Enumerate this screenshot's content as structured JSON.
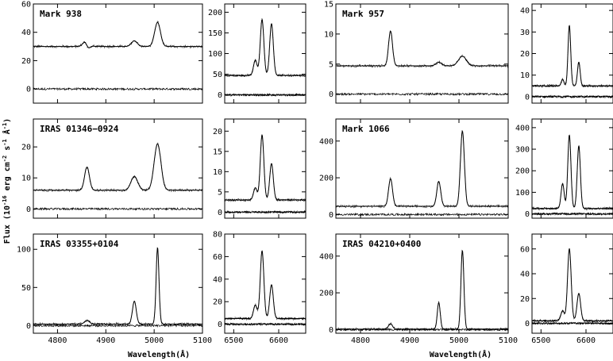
{
  "chart_data": {
    "type": "line",
    "ylabel": "Flux (10",
    "ylabel_exp1": "-16",
    "ylabel_mid": " erg cm",
    "ylabel_exp2": "-2",
    "ylabel_mid2": " s",
    "ylabel_exp3": "-1",
    "ylabel_mid3": " Å",
    "ylabel_exp4": "-1",
    "ylabel_end": ")",
    "xlabel": "Wavelength(Å)",
    "objects": [
      {
        "name": "Mark 938",
        "blue": {
          "xlim": [
            4750,
            5100
          ],
          "ylim": [
            -10,
            60
          ],
          "yticks": [
            0,
            20,
            40,
            60
          ],
          "continuum": 30,
          "resid": 0,
          "lines": [
            {
              "x": 4861,
              "amp": 8,
              "w": 6,
              "absorb": 8
            },
            {
              "x": 4959,
              "amp": 4,
              "w": 6
            },
            {
              "x": 5007,
              "amp": 17,
              "w": 6
            }
          ]
        },
        "red": {
          "xlim": [
            6480,
            6660
          ],
          "ylim": [
            -20,
            220
          ],
          "yticks": [
            0,
            50,
            100,
            150,
            200
          ],
          "continuum": 47,
          "resid": 0,
          "lines": [
            {
              "x": 6548,
              "amp": 37,
              "w": 4
            },
            {
              "x": 6563,
              "amp": 135,
              "w": 4
            },
            {
              "x": 6584,
              "amp": 125,
              "w": 4
            }
          ]
        }
      },
      {
        "name": "Mark 957",
        "blue": {
          "xlim": [
            4750,
            5100
          ],
          "ylim": [
            -1.5,
            15
          ],
          "yticks": [
            0,
            5,
            10,
            15
          ],
          "continuum": 4.7,
          "resid": 0,
          "lines": [
            {
              "x": 4861,
              "amp": 5.8,
              "w": 4
            },
            {
              "x": 4959,
              "amp": 0.6,
              "w": 6
            },
            {
              "x": 5007,
              "amp": 1.6,
              "w": 8
            }
          ]
        },
        "red": {
          "xlim": [
            6480,
            6660
          ],
          "ylim": [
            -3,
            43
          ],
          "yticks": [
            0,
            10,
            20,
            30,
            40
          ],
          "continuum": 5,
          "resid": 0,
          "lines": [
            {
              "x": 6548,
              "amp": 3,
              "w": 3
            },
            {
              "x": 6563,
              "amp": 28,
              "w": 3
            },
            {
              "x": 6584,
              "amp": 11,
              "w": 3
            }
          ]
        }
      },
      {
        "name": "IRAS 01346−0924",
        "blue": {
          "xlim": [
            4750,
            5100
          ],
          "ylim": [
            -3,
            29
          ],
          "yticks": [
            0,
            10,
            20
          ],
          "continuum": 6,
          "resid": 0,
          "lines": [
            {
              "x": 4861,
              "amp": 7.5,
              "w": 5
            },
            {
              "x": 4959,
              "amp": 4.5,
              "w": 7
            },
            {
              "x": 5007,
              "amp": 15,
              "w": 7
            }
          ]
        },
        "red": {
          "xlim": [
            6480,
            6660
          ],
          "ylim": [
            -1.5,
            23
          ],
          "yticks": [
            0,
            5,
            10,
            15,
            20
          ],
          "continuum": 3,
          "resid": 0,
          "lines": [
            {
              "x": 6548,
              "amp": 3,
              "w": 4
            },
            {
              "x": 6563,
              "amp": 16,
              "w": 4
            },
            {
              "x": 6584,
              "amp": 9,
              "w": 4
            }
          ]
        }
      },
      {
        "name": "Mark 1066",
        "blue": {
          "xlim": [
            4750,
            5100
          ],
          "ylim": [
            -20,
            520
          ],
          "yticks": [
            0,
            200,
            400
          ],
          "continuum": 45,
          "resid": 0,
          "lines": [
            {
              "x": 4861,
              "amp": 150,
              "w": 4
            },
            {
              "x": 4959,
              "amp": 135,
              "w": 4
            },
            {
              "x": 5007,
              "amp": 410,
              "w": 4
            }
          ]
        },
        "red": {
          "xlim": [
            6480,
            6660
          ],
          "ylim": [
            -20,
            440
          ],
          "yticks": [
            0,
            100,
            200,
            300,
            400
          ],
          "continuum": 25,
          "resid": 0,
          "lines": [
            {
              "x": 6548,
              "amp": 115,
              "w": 3.5
            },
            {
              "x": 6563,
              "amp": 340,
              "w": 3.5
            },
            {
              "x": 6584,
              "amp": 290,
              "w": 3.5
            }
          ]
        }
      },
      {
        "name": "IRAS 03355+0104",
        "blue": {
          "xlim": [
            4750,
            5100
          ],
          "ylim": [
            -10,
            120
          ],
          "yticks": [
            0,
            50,
            100
          ],
          "continuum": 2,
          "resid": 0,
          "lines": [
            {
              "x": 4861,
              "amp": 5,
              "w": 5
            },
            {
              "x": 4959,
              "amp": 30,
              "w": 4
            },
            {
              "x": 5007,
              "amp": 100,
              "w": 3
            }
          ]
        },
        "red": {
          "xlim": [
            6480,
            6660
          ],
          "ylim": [
            -8,
            80
          ],
          "yticks": [
            0,
            20,
            40,
            60,
            80
          ],
          "continuum": 5,
          "resid": 0,
          "lines": [
            {
              "x": 6548,
              "amp": 12,
              "w": 4
            },
            {
              "x": 6563,
              "amp": 60,
              "w": 4
            },
            {
              "x": 6584,
              "amp": 30,
              "w": 4
            }
          ]
        }
      },
      {
        "name": "IRAS 04210+0400",
        "blue": {
          "xlim": [
            4750,
            5100
          ],
          "ylim": [
            -20,
            520
          ],
          "yticks": [
            0,
            200,
            400
          ],
          "continuum": 2,
          "resid": 0,
          "lines": [
            {
              "x": 4861,
              "amp": 30,
              "w": 4
            },
            {
              "x": 4959,
              "amp": 145,
              "w": 3
            },
            {
              "x": 5007,
              "amp": 430,
              "w": 3
            }
          ]
        },
        "red": {
          "xlim": [
            6480,
            6660
          ],
          "ylim": [
            -8,
            72
          ],
          "yticks": [
            0,
            20,
            40,
            60
          ],
          "continuum": 2,
          "resid": 0,
          "lines": [
            {
              "x": 6548,
              "amp": 8,
              "w": 4
            },
            {
              "x": 6563,
              "amp": 58,
              "w": 4
            },
            {
              "x": 6584,
              "amp": 22,
              "w": 4
            }
          ]
        }
      }
    ],
    "blue_xticks": [
      4800,
      4900,
      5000,
      5100
    ],
    "blue_xticklabels": [
      "4800",
      "4900",
      "5000",
      "5100"
    ],
    "red_xticks": [
      6500,
      6600
    ],
    "red_xticklabels": [
      "6500",
      "6600"
    ]
  }
}
